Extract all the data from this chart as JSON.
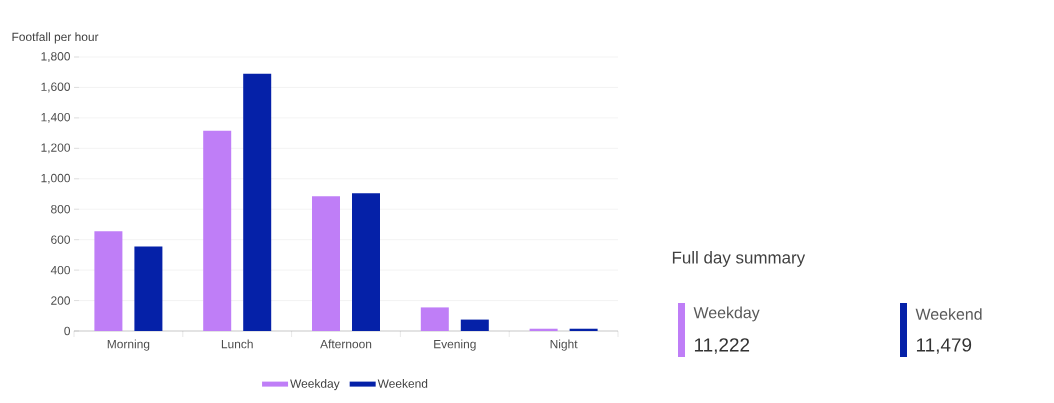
{
  "chart_data": [
    {
      "type": "bar",
      "ylabel": "Footfall per hour",
      "categories": [
        "Morning",
        "Lunch",
        "Afternoon",
        "Evening",
        "Night"
      ],
      "series": [
        {
          "name": "Weekday",
          "color": "#bf7ef7",
          "values": [
            655,
            1315,
            885,
            155,
            15
          ]
        },
        {
          "name": "Weekend",
          "color": "#0521a8",
          "values": [
            555,
            1690,
            905,
            75,
            15
          ]
        }
      ],
      "ylim": [
        0,
        1800
      ],
      "yticks": [
        0,
        200,
        400,
        600,
        800,
        {
          "value": 1000,
          "label": "1,000"
        },
        {
          "value": 1200,
          "label": "1,200"
        },
        {
          "value": 1400,
          "label": "1,400"
        },
        {
          "value": 1600,
          "label": "1,600"
        },
        {
          "value": 1800,
          "label": "1,800"
        }
      ],
      "grid": "y",
      "legend": "bottom"
    },
    {
      "type": "other",
      "title": "Full day summary",
      "categories": [
        "Weekday",
        "Weekend"
      ],
      "value_labels": [
        "11,222",
        "11,479"
      ],
      "colors": [
        "#bf7ef7",
        "#0521a8"
      ]
    }
  ]
}
